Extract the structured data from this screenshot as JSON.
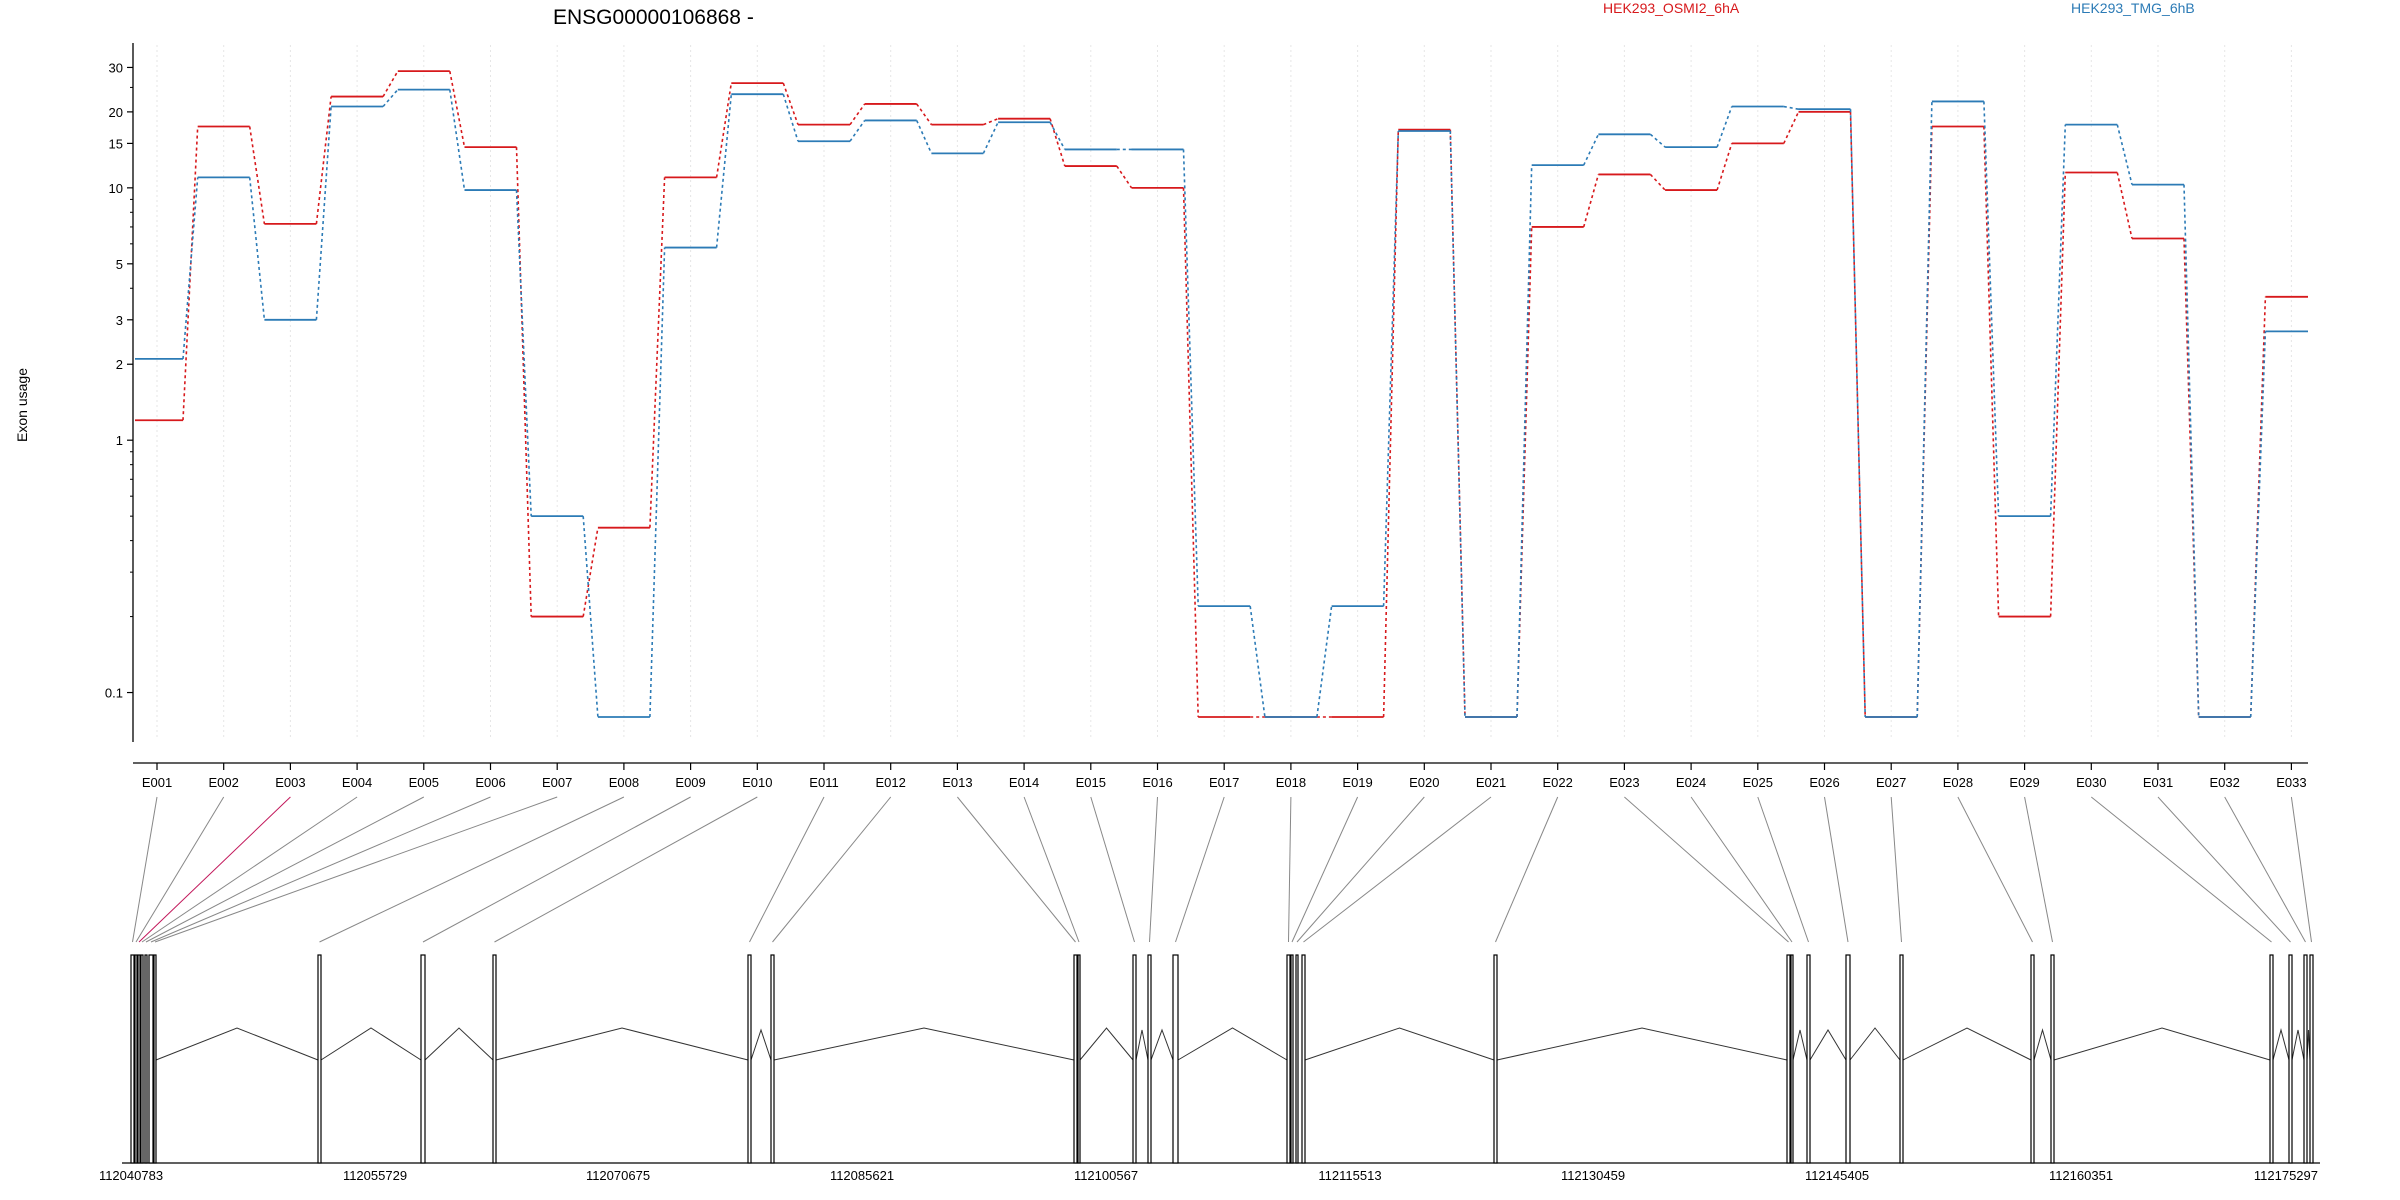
{
  "chart_data": {
    "type": "line",
    "title": "ENSG00000106868 -",
    "ylabel": "Exon usage",
    "y_scale": "log",
    "ylim": [
      0.08,
      33
    ],
    "y_ticks": [
      0.1,
      1,
      2,
      3,
      5,
      10,
      15,
      20,
      30
    ],
    "y_tick_labels": [
      "0.1",
      "1",
      "2",
      "3",
      "5",
      "10",
      "15",
      "20",
      "30"
    ],
    "categories": [
      "E001",
      "E002",
      "E003",
      "E004",
      "E005",
      "E006",
      "E007",
      "E008",
      "E009",
      "E010",
      "E011",
      "E012",
      "E013",
      "E014",
      "E015",
      "E016",
      "E017",
      "E018",
      "E019",
      "E020",
      "E021",
      "E022",
      "E023",
      "E024",
      "E025",
      "E026",
      "E027",
      "E028",
      "E029",
      "E030",
      "E031",
      "E032",
      "E033"
    ],
    "series": [
      {
        "name": "HEK293_OSMI2_6hA",
        "color": "#d7191c",
        "values": [
          1.2,
          17.5,
          7.2,
          23,
          29,
          14.5,
          0.2,
          0.45,
          11,
          26,
          17.8,
          21.5,
          17.8,
          18.8,
          12.2,
          10,
          0.08,
          0.08,
          0.08,
          17,
          0.08,
          7,
          11.3,
          9.8,
          15,
          20,
          0.08,
          17.5,
          0.2,
          11.5,
          6.3,
          0.08,
          3.7
        ]
      },
      {
        "name": "HEK293_TMG_6hB",
        "color": "#2c7bb6",
        "values": [
          2.1,
          11,
          3.0,
          21,
          24.5,
          9.8,
          0.5,
          0.08,
          5.8,
          23.5,
          15.3,
          18.5,
          13.7,
          18.2,
          14.2,
          14.2,
          0.22,
          0.08,
          0.22,
          16.8,
          0.08,
          12.3,
          16.3,
          14.5,
          21,
          20.5,
          0.08,
          22,
          0.5,
          17.8,
          10.3,
          0.08,
          2.7
        ]
      }
    ],
    "legend_placement": "top",
    "gene_model": {
      "coordinate_ticks": [
        "112040783",
        "112055729",
        "112070675",
        "112085621",
        "112100567",
        "112115513",
        "112130459",
        "112145405",
        "112160351",
        "112175297"
      ],
      "highlighted_exon": "E003"
    }
  }
}
